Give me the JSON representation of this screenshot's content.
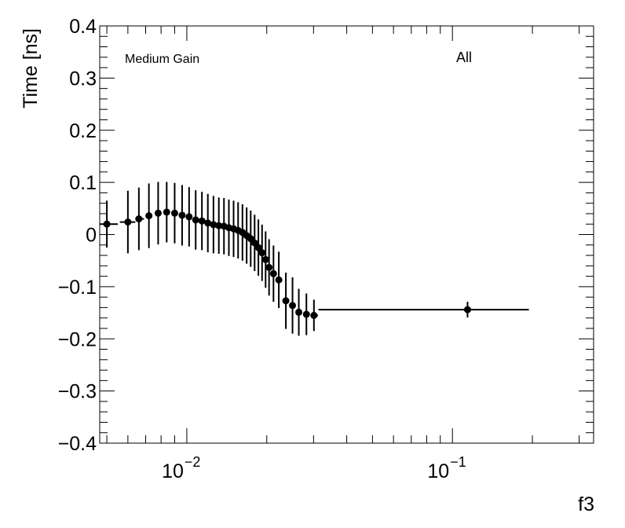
{
  "chart_data": {
    "type": "scatter",
    "xlabel": "f3",
    "ylabel": "Time [ns]",
    "xscale": "log",
    "xlim": [
      0.0047,
      0.34
    ],
    "ylim": [
      -0.4,
      0.4
    ],
    "grid": false,
    "legend": "none",
    "annotations": [
      "Medium Gain",
      "All"
    ],
    "yticks": [
      {
        "value": 0.4,
        "label": "0.4"
      },
      {
        "value": 0.3,
        "label": "0.3"
      },
      {
        "value": 0.2,
        "label": "0.2"
      },
      {
        "value": 0.1,
        "label": "0.1"
      },
      {
        "value": 0.0,
        "label": "0"
      },
      {
        "value": -0.1,
        "label": "−0.1"
      },
      {
        "value": -0.2,
        "label": "−0.2"
      },
      {
        "value": -0.3,
        "label": "−0.3"
      },
      {
        "value": -0.4,
        "label": "−0.4"
      }
    ],
    "xticks": [
      {
        "value": 0.01,
        "base": "10",
        "exp": "−2"
      },
      {
        "value": 0.1,
        "base": "10",
        "exp": "−1"
      }
    ],
    "series": [
      {
        "color": "#000000",
        "points": [
          {
            "x": 0.005,
            "y": 0.02,
            "yerr": 0.045,
            "xlo": 0.0047,
            "xhi": 0.0055
          },
          {
            "x": 0.006,
            "y": 0.024,
            "yerr": 0.06,
            "xlo": 0.0056,
            "xhi": 0.0064
          },
          {
            "x": 0.0066,
            "y": 0.03,
            "yerr": 0.06,
            "xlo": 0.0064,
            "xhi": 0.0069
          },
          {
            "x": 0.0072,
            "y": 0.036,
            "yerr": 0.062,
            "xlo": 0.007,
            "xhi": 0.0074
          },
          {
            "x": 0.0078,
            "y": 0.041,
            "yerr": 0.06,
            "xlo": 0.0076,
            "xhi": 0.008
          },
          {
            "x": 0.0084,
            "y": 0.043,
            "yerr": 0.058,
            "xlo": 0.0082,
            "xhi": 0.0086
          },
          {
            "x": 0.009,
            "y": 0.041,
            "yerr": 0.058,
            "xlo": 0.0088,
            "xhi": 0.0092
          },
          {
            "x": 0.0096,
            "y": 0.037,
            "yerr": 0.058,
            "xlo": 0.0094,
            "xhi": 0.0098
          },
          {
            "x": 0.0102,
            "y": 0.034,
            "yerr": 0.057,
            "xlo": 0.01,
            "xhi": 0.0104
          },
          {
            "x": 0.0108,
            "y": 0.028,
            "yerr": 0.057,
            "xlo": 0.0106,
            "xhi": 0.011
          },
          {
            "x": 0.0114,
            "y": 0.026,
            "yerr": 0.056,
            "xlo": 0.0112,
            "xhi": 0.0116
          },
          {
            "x": 0.012,
            "y": 0.022,
            "yerr": 0.056,
            "xlo": 0.0118,
            "xhi": 0.0122
          },
          {
            "x": 0.0126,
            "y": 0.019,
            "yerr": 0.055,
            "xlo": 0.0124,
            "xhi": 0.0128
          },
          {
            "x": 0.0132,
            "y": 0.017,
            "yerr": 0.054,
            "xlo": 0.013,
            "xhi": 0.0134
          },
          {
            "x": 0.0138,
            "y": 0.016,
            "yerr": 0.054,
            "xlo": 0.0136,
            "xhi": 0.014
          },
          {
            "x": 0.0144,
            "y": 0.013,
            "yerr": 0.054,
            "xlo": 0.0142,
            "xhi": 0.0146
          },
          {
            "x": 0.015,
            "y": 0.011,
            "yerr": 0.054,
            "xlo": 0.0148,
            "xhi": 0.0152
          },
          {
            "x": 0.0156,
            "y": 0.008,
            "yerr": 0.054,
            "xlo": 0.0154,
            "xhi": 0.0158
          },
          {
            "x": 0.0162,
            "y": 0.004,
            "yerr": 0.054,
            "xlo": 0.016,
            "xhi": 0.0164
          },
          {
            "x": 0.0168,
            "y": -0.002,
            "yerr": 0.054,
            "xlo": 0.0166,
            "xhi": 0.017
          },
          {
            "x": 0.0174,
            "y": -0.008,
            "yerr": 0.054,
            "xlo": 0.0172,
            "xhi": 0.0176
          },
          {
            "x": 0.018,
            "y": -0.016,
            "yerr": 0.054,
            "xlo": 0.0178,
            "xhi": 0.0182
          },
          {
            "x": 0.0186,
            "y": -0.025,
            "yerr": 0.054,
            "xlo": 0.0184,
            "xhi": 0.0188
          },
          {
            "x": 0.0192,
            "y": -0.035,
            "yerr": 0.054,
            "xlo": 0.019,
            "xhi": 0.0194
          },
          {
            "x": 0.0198,
            "y": -0.048,
            "yerr": 0.054,
            "xlo": 0.0196,
            "xhi": 0.02
          },
          {
            "x": 0.0204,
            "y": -0.063,
            "yerr": 0.054,
            "xlo": 0.0202,
            "xhi": 0.0206
          },
          {
            "x": 0.0212,
            "y": -0.075,
            "yerr": 0.054,
            "xlo": 0.0208,
            "xhi": 0.0216
          },
          {
            "x": 0.0222,
            "y": -0.087,
            "yerr": 0.054,
            "xlo": 0.0217,
            "xhi": 0.0227
          },
          {
            "x": 0.0236,
            "y": -0.127,
            "yerr": 0.054,
            "xlo": 0.023,
            "xhi": 0.0242
          },
          {
            "x": 0.025,
            "y": -0.136,
            "yerr": 0.054,
            "xlo": 0.0244,
            "xhi": 0.0256
          },
          {
            "x": 0.0264,
            "y": -0.149,
            "yerr": 0.045,
            "xlo": 0.0258,
            "xhi": 0.027
          },
          {
            "x": 0.0282,
            "y": -0.153,
            "yerr": 0.04,
            "xlo": 0.0274,
            "xhi": 0.029
          },
          {
            "x": 0.0301,
            "y": -0.155,
            "yerr": 0.03,
            "xlo": 0.0292,
            "xhi": 0.0312
          },
          {
            "x": 0.114,
            "y": -0.144,
            "yerr": 0.015,
            "xlo": 0.0313,
            "xhi": 0.194
          }
        ]
      }
    ]
  }
}
